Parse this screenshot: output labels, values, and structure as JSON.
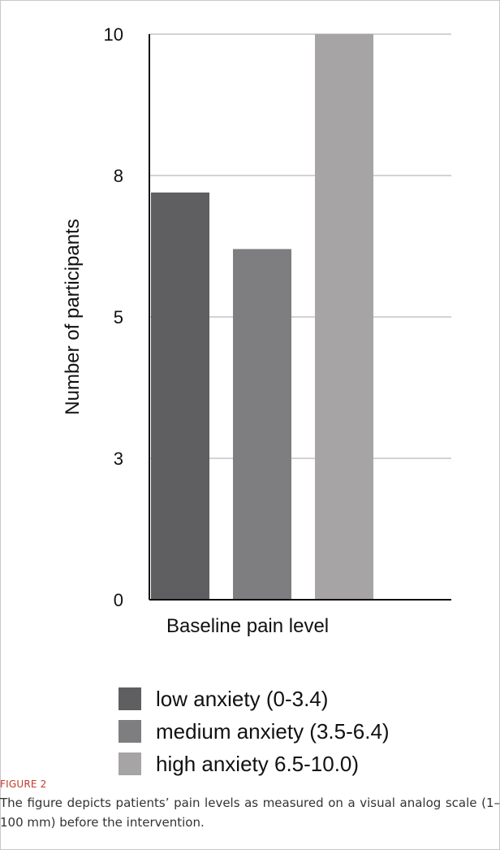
{
  "chart_data": {
    "type": "bar",
    "categories": [
      "low anxiety (0-3.4)",
      "medium anxiety (3.5-6.4)",
      "high anxiety 6.5-10.0)"
    ],
    "values": [
      7.2,
      6.2,
      10
    ],
    "colors": [
      "#5f5e60",
      "#7e7d80",
      "#a7a4a6"
    ],
    "ylabel": "Number of participants",
    "xlabel": "Baseline pain level",
    "ylim": [
      0,
      10
    ],
    "yticks": [
      {
        "value": 0,
        "label": "0"
      },
      {
        "value": 2.5,
        "label": "3"
      },
      {
        "value": 5,
        "label": "5"
      },
      {
        "value": 7.5,
        "label": "8"
      },
      {
        "value": 10,
        "label": "10"
      }
    ],
    "grid": true,
    "legend": "bottom"
  },
  "caption": {
    "label": "FIGURE 2",
    "text": "The figure depicts patients’ pain levels as measured on a visual analog scale (1–100 mm) before the intervention."
  }
}
